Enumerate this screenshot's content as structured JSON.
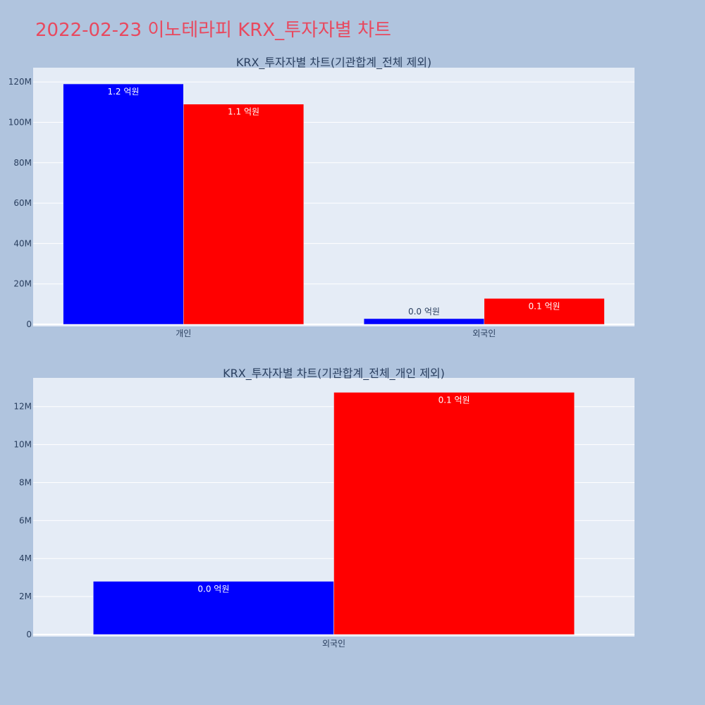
{
  "title": "2022-02-23 이노테라피 KRX_투자자별 차트",
  "colors": {
    "series_a": "#0000ff",
    "series_b": "#ff0000",
    "plot_bg": "#e5ecf6",
    "page_bg": "#b0c4de",
    "title": "#e8495f"
  },
  "chart_data": [
    {
      "type": "bar",
      "title": "KRX_투자자별 차트(기관합계_전체 제외)",
      "categories": [
        "개인",
        "외국인"
      ],
      "series": [
        {
          "values": [
            119000000,
            2800000
          ],
          "labels": [
            "1.2 억원",
            "0.0 억원"
          ],
          "color": "#0000ff"
        },
        {
          "values": [
            109000000,
            12800000
          ],
          "labels": [
            "1.1 억원",
            "0.1 억원"
          ],
          "color": "#ff0000"
        }
      ],
      "ylim": [
        0,
        126000000
      ],
      "yticks": [
        0,
        20000000,
        40000000,
        60000000,
        80000000,
        100000000,
        120000000
      ],
      "ytick_labels": [
        "0",
        "20M",
        "40M",
        "60M",
        "80M",
        "100M",
        "120M"
      ],
      "grid": true
    },
    {
      "type": "bar",
      "title": "KRX_투자자별 차트(기관합계_전체_개인 제외)",
      "categories": [
        "외국인"
      ],
      "series": [
        {
          "values": [
            2800000
          ],
          "labels": [
            "0.0 억원"
          ],
          "color": "#0000ff"
        },
        {
          "values": [
            12750000
          ],
          "labels": [
            "0.1 억원"
          ],
          "color": "#ff0000"
        }
      ],
      "ylim": [
        0,
        13400000
      ],
      "yticks": [
        0,
        2000000,
        4000000,
        6000000,
        8000000,
        10000000,
        12000000
      ],
      "ytick_labels": [
        "0",
        "2M",
        "4M",
        "6M",
        "8M",
        "10M",
        "12M"
      ],
      "grid": true
    }
  ]
}
